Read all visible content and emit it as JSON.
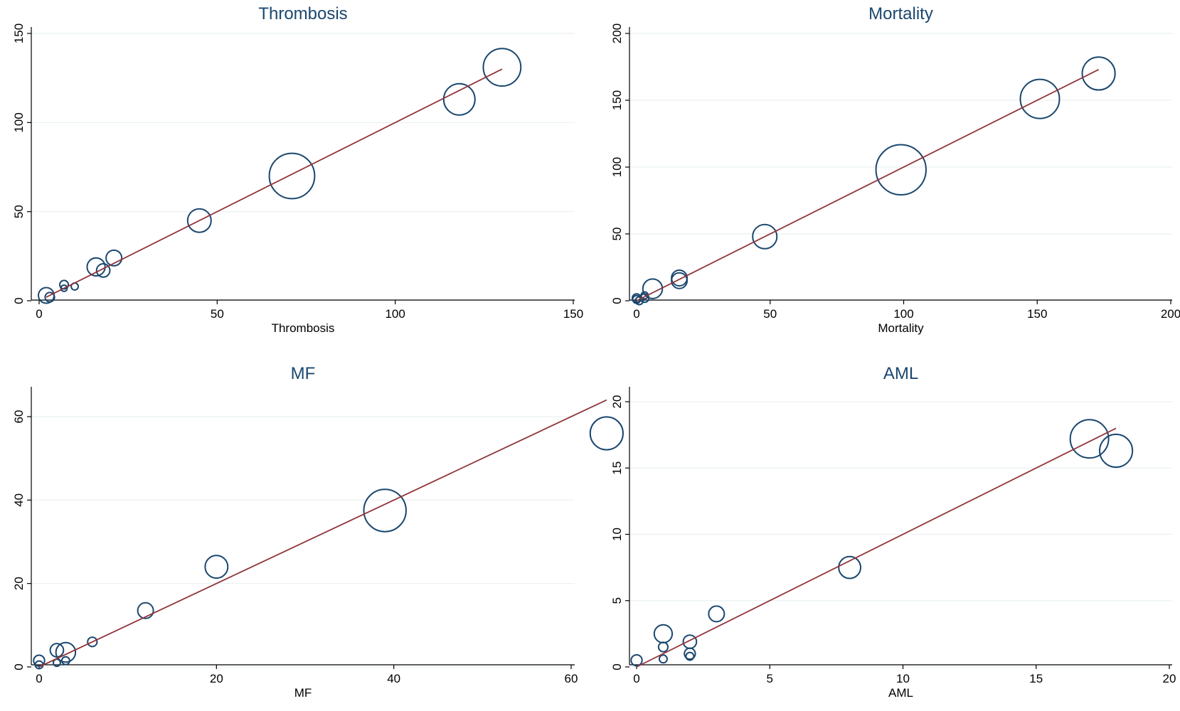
{
  "chart_data": [
    {
      "type": "scatter",
      "title": "Thrombosis",
      "xlabel": "Thrombosis",
      "ylabel": "",
      "xlim": [
        0,
        150
      ],
      "ylim": [
        0,
        150
      ],
      "xticks": [
        0,
        50,
        100,
        150
      ],
      "yticks": [
        0,
        50,
        100,
        150
      ],
      "grid": true,
      "fit_line": {
        "x": [
          2,
          130
        ],
        "y": [
          2,
          130
        ]
      },
      "points": [
        {
          "x": 2,
          "y": 3,
          "size": 2.0
        },
        {
          "x": 3,
          "y": 2,
          "size": 1.2
        },
        {
          "x": 7,
          "y": 9,
          "size": 1.1
        },
        {
          "x": 7,
          "y": 7,
          "size": 0.8
        },
        {
          "x": 10,
          "y": 8,
          "size": 0.9
        },
        {
          "x": 16,
          "y": 19,
          "size": 2.3
        },
        {
          "x": 18,
          "y": 17,
          "size": 1.7
        },
        {
          "x": 21,
          "y": 24,
          "size": 2.0
        },
        {
          "x": 45,
          "y": 45,
          "size": 3.0
        },
        {
          "x": 71,
          "y": 70,
          "size": 5.8
        },
        {
          "x": 118,
          "y": 113,
          "size": 4.0
        },
        {
          "x": 130,
          "y": 131,
          "size": 4.8
        }
      ]
    },
    {
      "type": "scatter",
      "title": "Mortality",
      "xlabel": "Mortality",
      "ylabel": "",
      "xlim": [
        0,
        200
      ],
      "ylim": [
        0,
        200
      ],
      "xticks": [
        0,
        50,
        100,
        150,
        200
      ],
      "yticks": [
        0,
        50,
        100,
        150,
        200
      ],
      "grid": true,
      "fit_line": {
        "x": [
          0,
          173
        ],
        "y": [
          0,
          173
        ]
      },
      "points": [
        {
          "x": 0,
          "y": 1,
          "size": 1.0
        },
        {
          "x": 0,
          "y": 2,
          "size": 1.1
        },
        {
          "x": 1,
          "y": 0,
          "size": 1.0
        },
        {
          "x": 3,
          "y": 2,
          "size": 1.1
        },
        {
          "x": 3,
          "y": 4,
          "size": 0.9
        },
        {
          "x": 6,
          "y": 9,
          "size": 2.5
        },
        {
          "x": 16,
          "y": 15,
          "size": 2.0
        },
        {
          "x": 16,
          "y": 17,
          "size": 2.0
        },
        {
          "x": 48,
          "y": 48,
          "size": 3.1
        },
        {
          "x": 99,
          "y": 98,
          "size": 6.4
        },
        {
          "x": 151,
          "y": 151,
          "size": 5.0
        },
        {
          "x": 173,
          "y": 170,
          "size": 4.2
        }
      ]
    },
    {
      "type": "scatter",
      "title": "MF",
      "xlabel": "MF",
      "ylabel": "",
      "xlim": [
        0,
        65
      ],
      "ylim": [
        0,
        65
      ],
      "xticks": [
        0,
        20,
        40,
        60
      ],
      "yticks": [
        0,
        20,
        40,
        60
      ],
      "grid": true,
      "fit_line": {
        "x": [
          0,
          64
        ],
        "y": [
          0,
          64
        ]
      },
      "points": [
        {
          "x": 0,
          "y": 1.5,
          "size": 1.4
        },
        {
          "x": 0,
          "y": 0.5,
          "size": 1.0
        },
        {
          "x": 2,
          "y": 4,
          "size": 1.7
        },
        {
          "x": 2,
          "y": 1,
          "size": 0.9
        },
        {
          "x": 3,
          "y": 3.5,
          "size": 2.5
        },
        {
          "x": 3,
          "y": 1.5,
          "size": 1.0
        },
        {
          "x": 6,
          "y": 6,
          "size": 1.2
        },
        {
          "x": 12,
          "y": 13.5,
          "size": 2.0
        },
        {
          "x": 20,
          "y": 24,
          "size": 2.9
        },
        {
          "x": 39,
          "y": 37.5,
          "size": 5.4
        },
        {
          "x": 64,
          "y": 56,
          "size": 4.2
        }
      ]
    },
    {
      "type": "scatter",
      "title": "AML",
      "xlabel": "AML",
      "ylabel": "",
      "xlim": [
        0,
        20
      ],
      "ylim": [
        0,
        20
      ],
      "xticks": [
        0,
        5,
        10,
        15,
        20
      ],
      "yticks": [
        0,
        5,
        10,
        15,
        20
      ],
      "grid": true,
      "fit_line": {
        "x": [
          0,
          18
        ],
        "y": [
          0,
          18
        ]
      },
      "points": [
        {
          "x": 0,
          "y": 0.5,
          "size": 1.4
        },
        {
          "x": 1,
          "y": 2.5,
          "size": 2.3
        },
        {
          "x": 1,
          "y": 1.5,
          "size": 1.2
        },
        {
          "x": 1,
          "y": 0.6,
          "size": 1.0
        },
        {
          "x": 2,
          "y": 1.9,
          "size": 1.7
        },
        {
          "x": 2,
          "y": 1.0,
          "size": 1.4
        },
        {
          "x": 2,
          "y": 0.8,
          "size": 1.0
        },
        {
          "x": 3,
          "y": 4.0,
          "size": 2.0
        },
        {
          "x": 8,
          "y": 7.5,
          "size": 2.8
        },
        {
          "x": 17,
          "y": 17.2,
          "size": 4.9
        },
        {
          "x": 18,
          "y": 16.3,
          "size": 4.2
        }
      ]
    }
  ]
}
